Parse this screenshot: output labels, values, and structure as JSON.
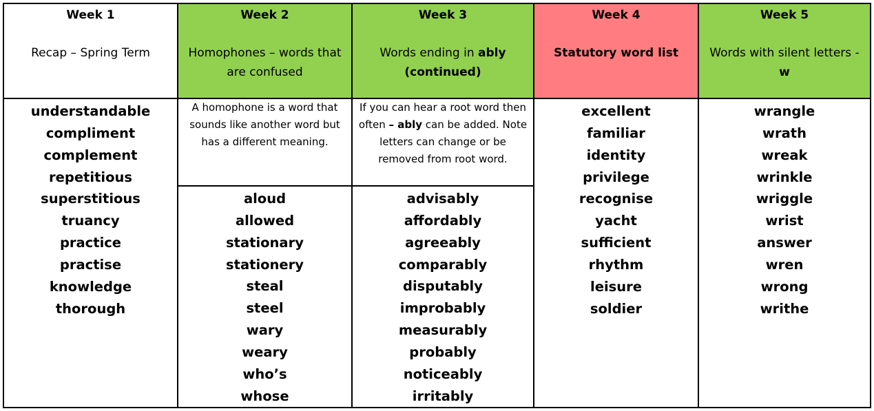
{
  "weeks": [
    {
      "heading": "Week 1",
      "topic_pre": "Recap – Spring Term",
      "topic_bold": "",
      "topic_post": "",
      "fill": "#ffffff",
      "words": [
        "understandable",
        "compliment",
        "complement",
        "repetitious",
        "superstitious",
        "truancy",
        "practice",
        "practise",
        "knowledge",
        "thorough"
      ]
    },
    {
      "heading": "Week 2",
      "topic_pre": "Homophones – words that are confused",
      "topic_bold": "",
      "topic_post": "",
      "fill": "#92d050",
      "note": {
        "pre": "A homophone is a word that sounds like another word but has a different meaning.",
        "bold": "",
        "post": ""
      },
      "words": [
        "aloud",
        "allowed",
        "stationary",
        "stationery",
        "steal",
        "steel",
        "wary",
        "weary",
        "who’s",
        "whose"
      ]
    },
    {
      "heading": "Week 3",
      "topic_pre": "Words ending in ",
      "topic_bold": "ably (continued)",
      "topic_post": "",
      "fill": "#92d050",
      "note": {
        "pre": "If you can hear a root word then often ",
        "bold": "– ably",
        "post": " can be added. Note letters can change or be removed from root word."
      },
      "words": [
        "advisably",
        "affordably",
        "agreeably",
        "comparably",
        "disputably",
        "improbably",
        "measurably",
        "probably",
        "noticeably",
        "irritably"
      ]
    },
    {
      "heading": "Week 4",
      "topic_pre": "",
      "topic_bold": "Statutory word list",
      "topic_post": "",
      "fill": "#ff7c80",
      "words": [
        "excellent",
        "familiar",
        "identity",
        "privilege",
        "recognise",
        "yacht",
        "sufficient",
        "rhythm",
        "leisure",
        "soldier"
      ]
    },
    {
      "heading": "Week 5",
      "topic_pre": "Words with silent letters - ",
      "topic_bold": "w",
      "topic_post": "",
      "fill": "#92d050",
      "words": [
        "wrangle",
        "wrath",
        "wreak",
        "wrinkle",
        "wriggle",
        "wrist",
        "answer",
        "wren",
        "wrong",
        "writhe"
      ]
    }
  ]
}
